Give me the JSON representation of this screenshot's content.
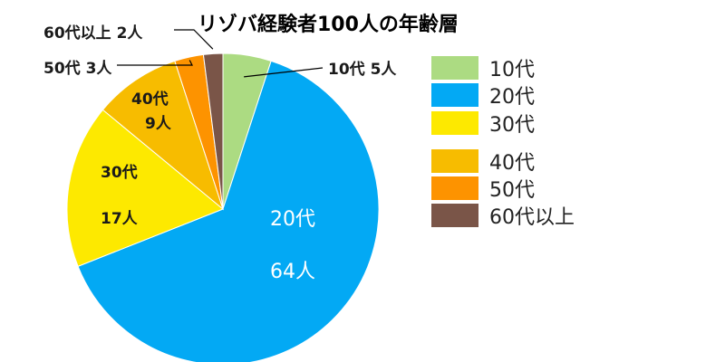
{
  "chart_data": {
    "type": "pie",
    "title": "リゾバ経験者100人の年齢層",
    "categories": [
      "10代",
      "20代",
      "30代",
      "40代",
      "50代",
      "60代以上"
    ],
    "values": [
      5,
      64,
      17,
      9,
      3,
      2
    ],
    "unit": "人",
    "colors": [
      "#acdb82",
      "#03a9f4",
      "#fde900",
      "#f7bc00",
      "#fd9300",
      "#7a5548"
    ],
    "data_labels": [
      {
        "category": "10代",
        "text": "10代 5人"
      },
      {
        "category": "20代",
        "line1": "20代",
        "line2": "64人"
      },
      {
        "category": "30代",
        "line1": "30代",
        "line2": "17人"
      },
      {
        "category": "40代",
        "line1": "40代",
        "line2": "9人"
      },
      {
        "category": "50代",
        "text": "50代 3人"
      },
      {
        "category": "60代以上",
        "text": "60代以上 2人"
      }
    ],
    "legend": {
      "position": "right",
      "entries": [
        "10代",
        "20代",
        "30代",
        "40代",
        "50代",
        "60代以上"
      ]
    }
  }
}
